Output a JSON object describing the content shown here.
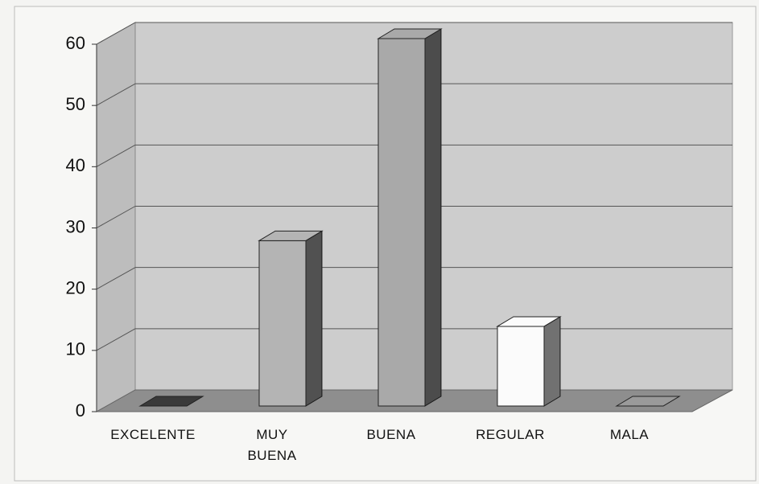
{
  "chart_data": {
    "type": "bar3d",
    "categories": [
      "EXCELENTE",
      "MUY BUENA",
      "BUENA",
      "REGULAR",
      "MALA"
    ],
    "values": [
      0,
      27,
      60,
      13,
      0
    ],
    "colors": [
      "#3a3a3a",
      "#b4b4b4",
      "#a9a9a9",
      "#fbfbfb",
      "#9a9a9a"
    ],
    "ylim": [
      0,
      60
    ],
    "yticks": [
      0,
      10,
      20,
      30,
      40,
      50,
      60
    ],
    "grid": true
  }
}
